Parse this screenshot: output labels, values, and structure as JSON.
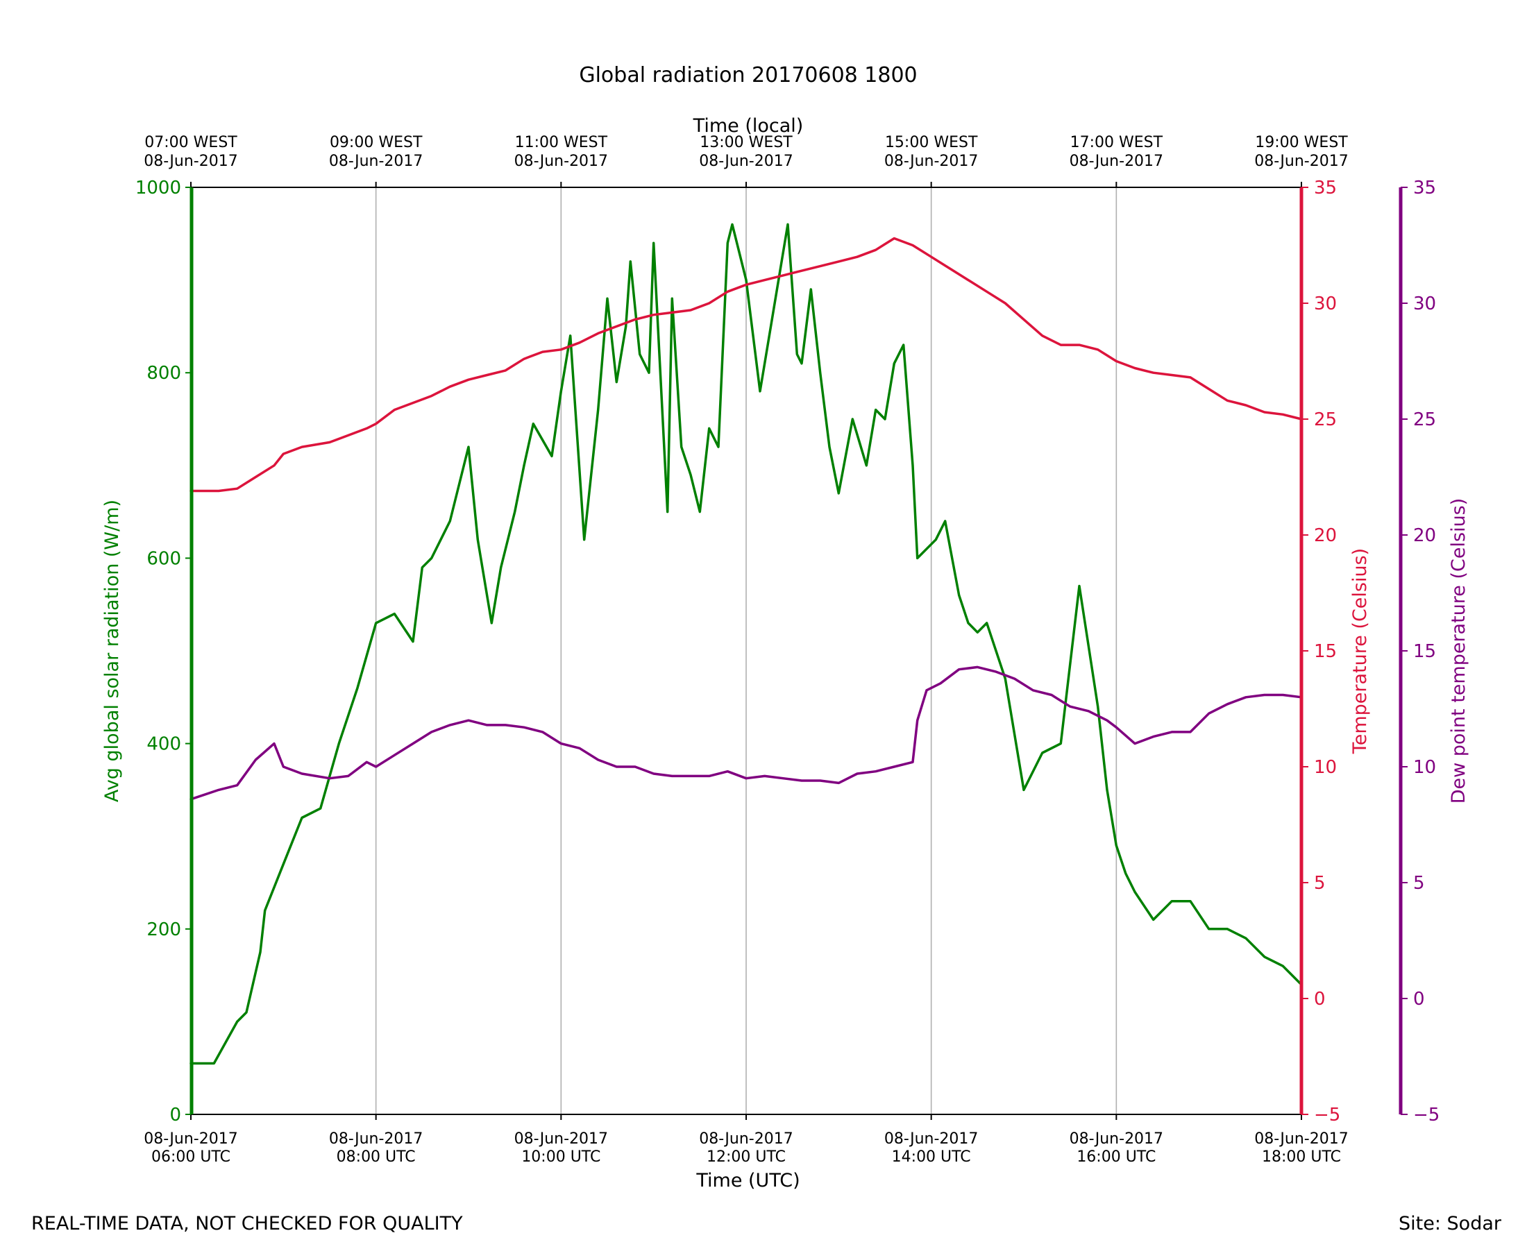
{
  "chart_data": {
    "type": "line",
    "title": "Global radiation 20170608 1800",
    "xlabel": "Time (UTC)",
    "x2label": "Time (local)",
    "ylabel": "Avg global solar radiation (W/m)",
    "y2label": "Temperature (Celsius)",
    "y3label": "Dew point temperature (Celsius)",
    "xlim_hours": [
      6,
      18
    ],
    "ylim": [
      0,
      1000
    ],
    "y2lim": [
      -5,
      35
    ],
    "y3lim": [
      -5,
      35
    ],
    "yticks": [
      "0",
      "200",
      "400",
      "600",
      "800",
      "1000"
    ],
    "y2ticks": [
      "−5",
      "0",
      "5",
      "10",
      "15",
      "20",
      "25",
      "30",
      "35"
    ],
    "y3ticks": [
      "−5",
      "0",
      "5",
      "10",
      "15",
      "20",
      "25",
      "30",
      "35"
    ],
    "xticks_bottom": [
      {
        "date": "08-Jun-2017",
        "time": "06:00 UTC"
      },
      {
        "date": "08-Jun-2017",
        "time": "08:00 UTC"
      },
      {
        "date": "08-Jun-2017",
        "time": "10:00 UTC"
      },
      {
        "date": "08-Jun-2017",
        "time": "12:00 UTC"
      },
      {
        "date": "08-Jun-2017",
        "time": "14:00 UTC"
      },
      {
        "date": "08-Jun-2017",
        "time": "16:00 UTC"
      },
      {
        "date": "08-Jun-2017",
        "time": "18:00 UTC"
      }
    ],
    "xticks_top": [
      {
        "time": "07:00 WEST",
        "date": "08-Jun-2017"
      },
      {
        "time": "09:00 WEST",
        "date": "08-Jun-2017"
      },
      {
        "time": "11:00 WEST",
        "date": "08-Jun-2017"
      },
      {
        "time": "13:00 WEST",
        "date": "08-Jun-2017"
      },
      {
        "time": "15:00 WEST",
        "date": "08-Jun-2017"
      },
      {
        "time": "17:00 WEST",
        "date": "08-Jun-2017"
      },
      {
        "time": "19:00 WEST",
        "date": "08-Jun-2017"
      }
    ],
    "grid": "vertical",
    "series": [
      {
        "name": "Avg global solar radiation",
        "axis": "left",
        "color": "#008000",
        "x": [
          6.0,
          6.25,
          6.5,
          6.6,
          6.75,
          6.8,
          7.0,
          7.2,
          7.4,
          7.6,
          7.8,
          8.0,
          8.2,
          8.4,
          8.5,
          8.6,
          8.8,
          9.0,
          9.1,
          9.25,
          9.35,
          9.5,
          9.6,
          9.7,
          9.9,
          10.0,
          10.1,
          10.25,
          10.4,
          10.5,
          10.6,
          10.7,
          10.75,
          10.85,
          10.95,
          11.0,
          11.15,
          11.2,
          11.3,
          11.4,
          11.5,
          11.6,
          11.7,
          11.8,
          11.85,
          12.0,
          12.15,
          12.3,
          12.45,
          12.55,
          12.6,
          12.7,
          12.8,
          12.9,
          13.0,
          13.15,
          13.3,
          13.4,
          13.5,
          13.6,
          13.7,
          13.8,
          13.85,
          14.05,
          14.15,
          14.3,
          14.4,
          14.5,
          14.6,
          14.8,
          15.0,
          15.2,
          15.4,
          15.6,
          15.8,
          15.9,
          16.0,
          16.1,
          16.2,
          16.4,
          16.6,
          16.8,
          17.0,
          17.2,
          17.4,
          17.6,
          17.8,
          18.0
        ],
        "values": [
          55,
          55,
          100,
          110,
          175,
          220,
          270,
          320,
          330,
          400,
          460,
          530,
          540,
          510,
          590,
          600,
          640,
          720,
          620,
          530,
          590,
          650,
          700,
          745,
          710,
          780,
          840,
          620,
          760,
          880,
          790,
          850,
          920,
          820,
          800,
          940,
          650,
          880,
          720,
          690,
          650,
          740,
          720,
          940,
          960,
          900,
          780,
          870,
          960,
          820,
          810,
          890,
          800,
          720,
          670,
          750,
          700,
          760,
          750,
          810,
          830,
          700,
          600,
          620,
          640,
          560,
          530,
          520,
          530,
          470,
          350,
          390,
          400,
          570,
          440,
          350,
          290,
          260,
          240,
          210,
          230,
          230,
          200,
          200,
          190,
          170,
          160,
          140
        ]
      },
      {
        "name": "Temperature",
        "axis": "right",
        "color": "#DC143C",
        "x": [
          6.0,
          6.3,
          6.5,
          6.7,
          6.9,
          7.0,
          7.2,
          7.5,
          7.7,
          7.9,
          8.0,
          8.2,
          8.4,
          8.6,
          8.8,
          9.0,
          9.2,
          9.4,
          9.6,
          9.8,
          10.0,
          10.2,
          10.4,
          10.6,
          10.8,
          11.0,
          11.2,
          11.4,
          11.6,
          11.8,
          12.0,
          12.2,
          12.4,
          12.6,
          12.8,
          13.0,
          13.2,
          13.4,
          13.6,
          13.8,
          14.0,
          14.2,
          14.4,
          14.6,
          14.8,
          15.0,
          15.2,
          15.4,
          15.6,
          15.8,
          16.0,
          16.2,
          16.4,
          16.6,
          16.8,
          17.0,
          17.2,
          17.4,
          17.6,
          17.8,
          18.0
        ],
        "values": [
          21.9,
          21.9,
          22.0,
          22.5,
          23.0,
          23.5,
          23.8,
          24.0,
          24.3,
          24.6,
          24.8,
          25.4,
          25.7,
          26.0,
          26.4,
          26.7,
          26.9,
          27.1,
          27.6,
          27.9,
          28.0,
          28.3,
          28.7,
          29.0,
          29.3,
          29.5,
          29.6,
          29.7,
          30.0,
          30.5,
          30.8,
          31.0,
          31.2,
          31.4,
          31.6,
          31.8,
          32.0,
          32.3,
          32.8,
          32.5,
          32.0,
          31.5,
          31.0,
          30.5,
          30.0,
          29.3,
          28.6,
          28.2,
          28.2,
          28.0,
          27.5,
          27.2,
          27.0,
          26.9,
          26.8,
          26.3,
          25.8,
          25.6,
          25.3,
          25.2,
          25.0
        ]
      },
      {
        "name": "Dew point temperature",
        "axis": "far-right",
        "color": "#800080",
        "x": [
          6.0,
          6.3,
          6.5,
          6.7,
          6.9,
          7.0,
          7.2,
          7.5,
          7.7,
          7.9,
          8.0,
          8.2,
          8.4,
          8.6,
          8.8,
          9.0,
          9.2,
          9.4,
          9.6,
          9.8,
          10.0,
          10.2,
          10.4,
          10.6,
          10.8,
          11.0,
          11.2,
          11.4,
          11.6,
          11.8,
          12.0,
          12.2,
          12.4,
          12.6,
          12.8,
          13.0,
          13.2,
          13.4,
          13.6,
          13.8,
          13.85,
          13.95,
          14.1,
          14.3,
          14.5,
          14.7,
          14.9,
          15.1,
          15.3,
          15.5,
          15.7,
          15.9,
          16.0,
          16.2,
          16.4,
          16.6,
          16.8,
          17.0,
          17.2,
          17.4,
          17.6,
          17.8,
          18.0
        ],
        "values": [
          8.6,
          9.0,
          9.2,
          10.3,
          11.0,
          10.0,
          9.7,
          9.5,
          9.6,
          10.2,
          10.0,
          10.5,
          11.0,
          11.5,
          11.8,
          12.0,
          11.8,
          11.8,
          11.7,
          11.5,
          11.0,
          10.8,
          10.3,
          10.0,
          10.0,
          9.7,
          9.6,
          9.6,
          9.6,
          9.8,
          9.5,
          9.6,
          9.5,
          9.4,
          9.4,
          9.3,
          9.7,
          9.8,
          10.0,
          10.2,
          12.0,
          13.3,
          13.6,
          14.2,
          14.3,
          14.1,
          13.8,
          13.3,
          13.1,
          12.6,
          12.4,
          12.0,
          11.7,
          11.0,
          11.3,
          11.5,
          11.5,
          12.3,
          12.7,
          13.0,
          13.1,
          13.1,
          13.0
        ]
      }
    ]
  },
  "footer": {
    "left_note": "REAL-TIME DATA, NOT CHECKED FOR QUALITY",
    "right_note": "Site: Sodar"
  }
}
